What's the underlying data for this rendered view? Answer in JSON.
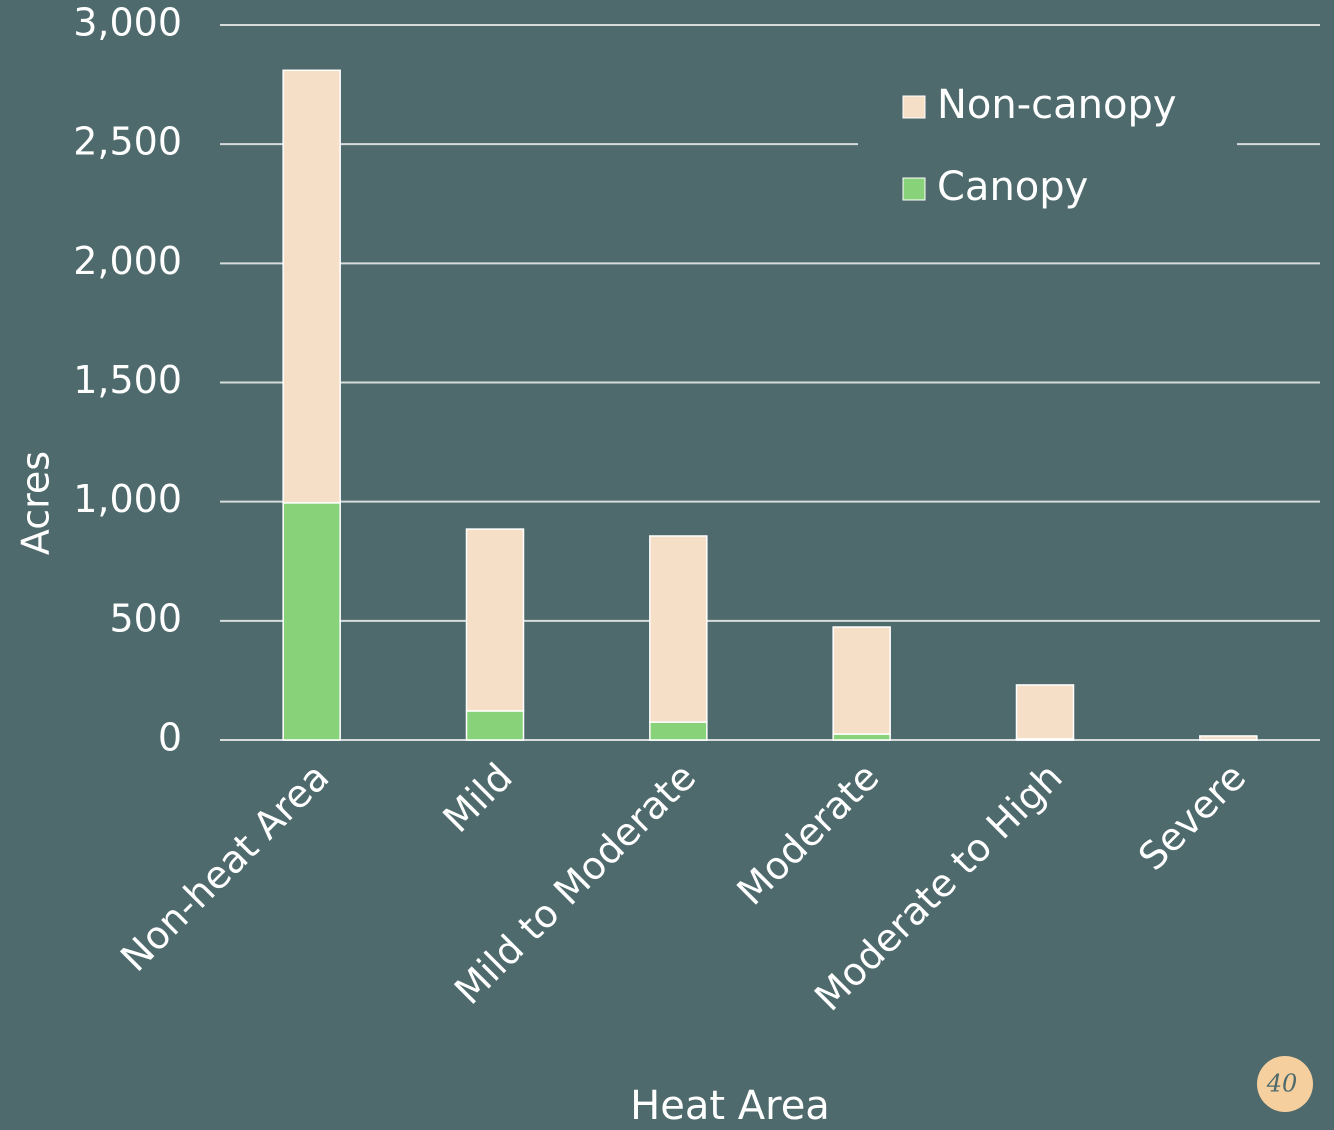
{
  "chart_data": {
    "type": "stacked_bar",
    "x_label": "Heat Area",
    "y_label": "Acres",
    "categories": [
      "Non-heat Area",
      "Mild",
      "Mild to Moderate",
      "Moderate",
      "Moderate to High",
      "Severe"
    ],
    "series": [
      {
        "name": "Canopy",
        "color": "#88d37a",
        "values": [
          995,
          122,
          75,
          25,
          5,
          1
        ]
      },
      {
        "name": "Non-canopy",
        "color": "#f5dfc7",
        "values": [
          1815,
          763,
          781,
          449,
          226,
          16
        ]
      }
    ],
    "ylim": [
      0,
      3000
    ],
    "yticks": [
      0,
      500,
      {
        "value": 1000,
        "label": "1,000"
      },
      {
        "value": 1500,
        "label": "1,500"
      },
      {
        "value": 2000,
        "label": "2,000"
      },
      {
        "value": 2500,
        "label": "2,500"
      },
      {
        "value": 3000,
        "label": "3,000"
      }
    ],
    "grid": true,
    "legend": "upper right",
    "page_number": "40"
  }
}
